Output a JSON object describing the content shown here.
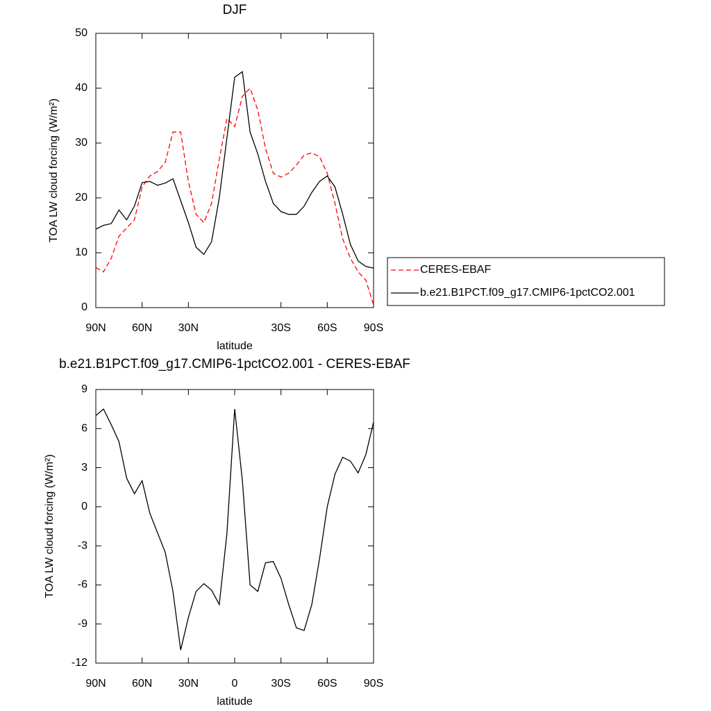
{
  "chart_data": [
    {
      "type": "line",
      "title": "DJF",
      "x_label": "latitude",
      "y_label": "TOA LW cloud forcing (W/m²)",
      "x": [
        90,
        85,
        80,
        75,
        70,
        65,
        60,
        55,
        50,
        45,
        40,
        35,
        30,
        25,
        20,
        15,
        10,
        5,
        0,
        -5,
        -10,
        -15,
        -20,
        -25,
        -30,
        -35,
        -40,
        -45,
        -50,
        -55,
        -60,
        -65,
        -70,
        -75,
        -80,
        -85,
        -90
      ],
      "series": [
        {
          "name": "CERES-EBAF",
          "color": "#ff0000",
          "dashed": true,
          "values": [
            7.3,
            6.5,
            9,
            13,
            14.5,
            16,
            22,
            24,
            24.8,
            26.5,
            32,
            32,
            23,
            17,
            15.5,
            19,
            27,
            34.5,
            33,
            38.5,
            40,
            36,
            29,
            24.5,
            23.8,
            24.5,
            26,
            27.8,
            28.2,
            27.5,
            24.5,
            19,
            12.5,
            9,
            6.5,
            5,
            0.5
          ]
        },
        {
          "name": "b.e21.B1PCT.f09_g17.CMIP6-1pctCO2.001",
          "color": "#000000",
          "dashed": false,
          "values": [
            14.3,
            15,
            15.3,
            17.8,
            16,
            18.5,
            22.8,
            23,
            22.3,
            22.7,
            23.5,
            19.5,
            15.5,
            11,
            9.7,
            12,
            20,
            31,
            42,
            43,
            32,
            28,
            23,
            19,
            17.5,
            17,
            17,
            18.5,
            21,
            23,
            24,
            22,
            17,
            11.5,
            8.5,
            7.5,
            7.2
          ]
        }
      ],
      "xlim": [
        90,
        -90
      ],
      "xticks": [
        {
          "value": 90,
          "label": "90N"
        },
        {
          "value": 60,
          "label": "60N"
        },
        {
          "value": 30,
          "label": "30N"
        },
        {
          "value": -30,
          "label": "30S"
        },
        {
          "value": -60,
          "label": "60S"
        },
        {
          "value": -90,
          "label": "90S"
        }
      ],
      "ylim": [
        0,
        50
      ],
      "yticks": [
        0,
        10,
        20,
        30,
        40,
        50
      ],
      "legend": "outside right"
    },
    {
      "type": "line",
      "title": "b.e21.B1PCT.f09_g17.CMIP6-1pctCO2.001 - CERES-EBAF",
      "x_label": "latitude",
      "y_label": "TOA LW cloud forcing (W/m²)",
      "x": [
        90,
        85,
        80,
        75,
        70,
        65,
        60,
        55,
        50,
        45,
        40,
        35,
        30,
        25,
        20,
        15,
        10,
        5,
        0,
        -5,
        -10,
        -15,
        -20,
        -25,
        -30,
        -35,
        -40,
        -45,
        -50,
        -55,
        -60,
        -65,
        -70,
        -75,
        -80,
        -85,
        -90
      ],
      "color": "#000000",
      "values": [
        7,
        7.5,
        6.3,
        5,
        2.2,
        1,
        2,
        -0.5,
        -2,
        -3.5,
        -6.5,
        -11,
        -8.5,
        -6.5,
        -5.9,
        -6.4,
        -7.5,
        -2,
        7.5,
        2,
        -6,
        -6.5,
        -4.3,
        -4.2,
        -5.5,
        -7.5,
        -9.3,
        -9.5,
        -7.5,
        -4,
        0,
        2.5,
        3.8,
        3.5,
        2.6,
        4,
        6.5
      ],
      "xlim": [
        90,
        -90
      ],
      "xticks": [
        {
          "value": 90,
          "label": "90N"
        },
        {
          "value": 60,
          "label": "60N"
        },
        {
          "value": 30,
          "label": "30N"
        },
        0,
        {
          "value": -30,
          "label": "30S"
        },
        {
          "value": -60,
          "label": "60S"
        },
        {
          "value": -90,
          "label": "90S"
        }
      ],
      "ylim": [
        -12,
        9
      ],
      "yticks": [
        -12,
        -9,
        -6,
        -3,
        0,
        3,
        6,
        9
      ]
    }
  ]
}
